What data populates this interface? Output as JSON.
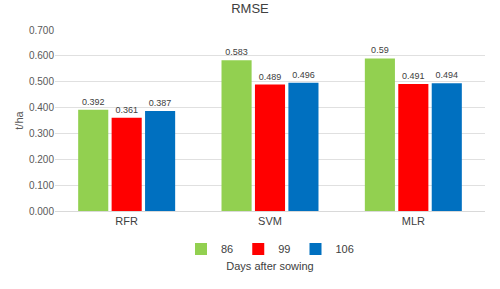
{
  "chart_data": {
    "type": "bar",
    "title": "RMSE",
    "x_label": "Days after sowing",
    "y_label": "t/ha",
    "categories": [
      "RFR",
      "SVM",
      "MLR"
    ],
    "series": [
      {
        "name": "86",
        "color": "#92D050",
        "values": [
          0.392,
          0.583,
          0.59
        ]
      },
      {
        "name": "99",
        "color": "#FF0000",
        "values": [
          0.361,
          0.489,
          0.491
        ]
      },
      {
        "name": "106",
        "color": "#0070C0",
        "values": [
          0.387,
          0.496,
          0.494
        ]
      }
    ],
    "ylim": [
      0,
      0.7
    ],
    "yticks": [
      {
        "value": 0,
        "label": "0.000"
      },
      {
        "value": 0.1,
        "label": "0.100"
      },
      {
        "value": 0.2,
        "label": "0.200"
      },
      {
        "value": 0.3,
        "label": "0.300"
      },
      {
        "value": 0.4,
        "label": "0.400"
      },
      {
        "value": 0.5,
        "label": "0.500"
      },
      {
        "value": 0.6,
        "label": "0.600"
      },
      {
        "value": 0.7,
        "label": "0.700"
      }
    ],
    "grid": true,
    "legend": "bottom",
    "data_labels": true
  }
}
